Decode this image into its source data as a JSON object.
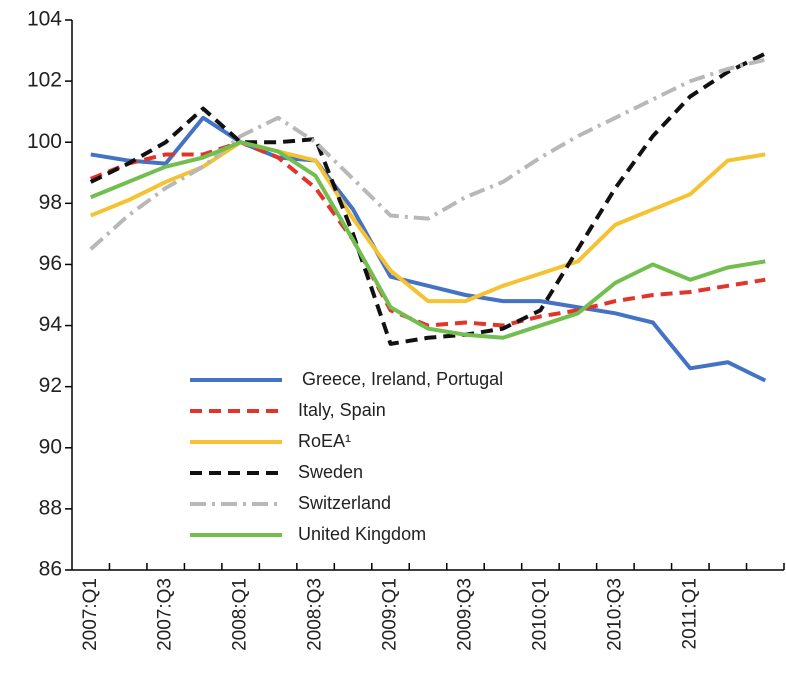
{
  "chart_data": {
    "type": "line",
    "categories": [
      "2007:Q1",
      null,
      "2007:Q3",
      null,
      "2008:Q1",
      null,
      "2008:Q3",
      null,
      "2009:Q1",
      null,
      "2009:Q3",
      null,
      "2010:Q1",
      null,
      "2010:Q3",
      null,
      "2011:Q1",
      null,
      null
    ],
    "series": [
      {
        "name": "Greece, Ireland, Portugal",
        "color": "#4472c4",
        "style": "solid",
        "values": [
          99.6,
          99.4,
          99.3,
          100.8,
          100.0,
          99.5,
          99.4,
          97.8,
          95.6,
          95.3,
          95.0,
          94.8,
          94.8,
          94.6,
          94.4,
          94.1,
          92.6,
          92.8,
          92.2
        ]
      },
      {
        "name": "Italy, Spain",
        "color": "#e0352b",
        "style": "dashed",
        "values": [
          98.8,
          99.3,
          99.6,
          99.6,
          100.0,
          99.5,
          98.5,
          96.8,
          94.5,
          94.0,
          94.1,
          94.0,
          94.3,
          94.5,
          94.8,
          95.0,
          95.1,
          95.3,
          95.5
        ]
      },
      {
        "name": "RoEA¹",
        "color": "#f5c232",
        "style": "solid",
        "values": [
          97.6,
          98.1,
          98.7,
          99.2,
          100.0,
          99.7,
          99.4,
          97.5,
          95.8,
          94.8,
          94.8,
          95.3,
          95.7,
          96.1,
          97.3,
          97.8,
          98.3,
          99.4,
          99.6
        ]
      },
      {
        "name": "Sweden",
        "color": "#111111",
        "style": "dashed",
        "values": [
          98.7,
          99.3,
          100.0,
          101.1,
          100.0,
          100.0,
          100.1,
          97.0,
          93.4,
          93.6,
          93.7,
          93.9,
          94.5,
          96.5,
          98.5,
          100.2,
          101.5,
          102.3,
          102.9
        ]
      },
      {
        "name": "Switzerland",
        "color": "#b8b8b8",
        "style": "dashdot",
        "values": [
          96.5,
          97.6,
          98.5,
          99.2,
          100.2,
          100.8,
          100.0,
          98.8,
          97.6,
          97.5,
          98.2,
          98.7,
          99.5,
          100.2,
          100.8,
          101.4,
          102.0,
          102.4,
          102.7
        ]
      },
      {
        "name": "United Kingdom",
        "color": "#72bf4f",
        "style": "solid",
        "values": [
          98.2,
          98.7,
          99.2,
          99.5,
          100.0,
          99.7,
          98.9,
          96.8,
          94.6,
          93.9,
          93.7,
          93.6,
          94.0,
          94.4,
          95.4,
          96.0,
          95.5,
          95.9,
          96.1
        ]
      }
    ],
    "ylim": [
      86,
      104
    ],
    "yticks": [
      86,
      88,
      90,
      92,
      94,
      96,
      98,
      100,
      102,
      104
    ],
    "grid": false,
    "legend": "lower center"
  }
}
